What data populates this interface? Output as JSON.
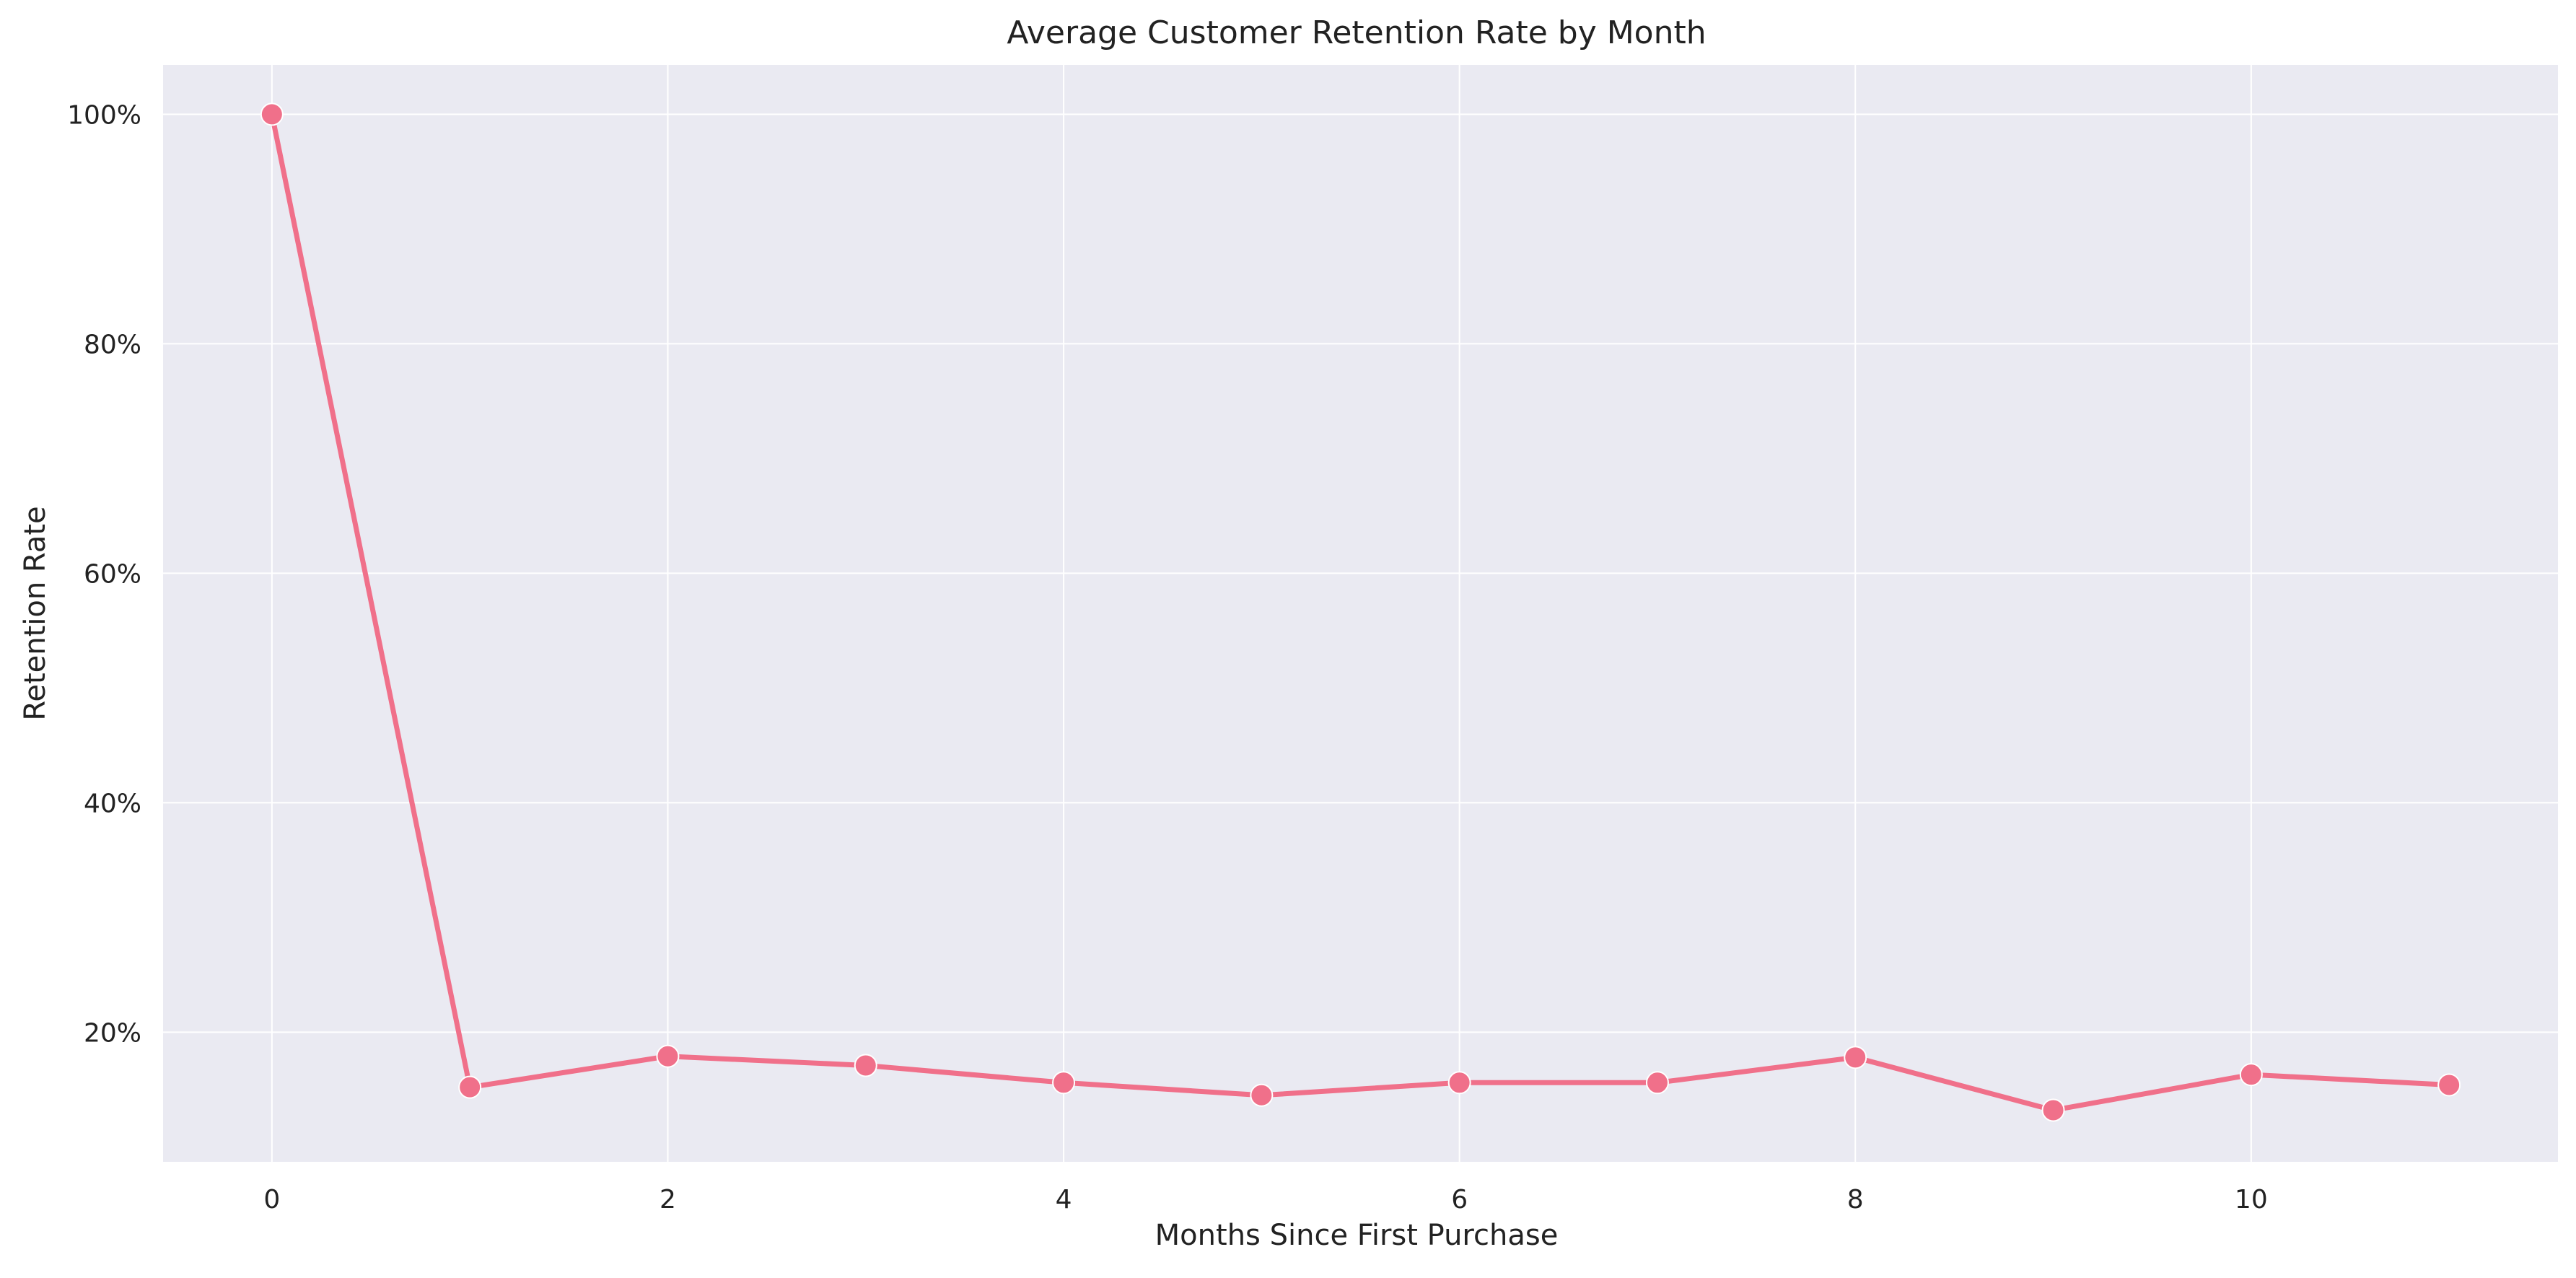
{
  "chart_data": {
    "type": "line",
    "title": "Average Customer Retention Rate by Month",
    "xlabel": "Months Since First Purchase",
    "ylabel": "Retention Rate",
    "x": [
      0,
      1,
      2,
      3,
      4,
      5,
      6,
      7,
      8,
      9,
      10,
      11
    ],
    "series": [
      {
        "values": [
          100.0,
          15.2,
          17.9,
          17.1,
          15.6,
          14.5,
          15.6,
          15.6,
          17.8,
          13.2,
          16.3,
          15.4
        ]
      }
    ],
    "xlim": [
      -0.55,
      11.55
    ],
    "ylim": [
      8.7,
      104.3
    ],
    "xticks": [
      0,
      2,
      4,
      6,
      8,
      10
    ],
    "xtick_labels": [
      "0",
      "2",
      "4",
      "6",
      "8",
      "10"
    ],
    "yticks": [
      20,
      40,
      60,
      80,
      100
    ],
    "ytick_labels": [
      "20%",
      "40%",
      "60%",
      "80%",
      "100%"
    ],
    "grid": true,
    "legend": "none",
    "colors": {
      "line": "#f0708a",
      "plot_background": "#eaeaf2",
      "grid": "#ffffff"
    }
  }
}
